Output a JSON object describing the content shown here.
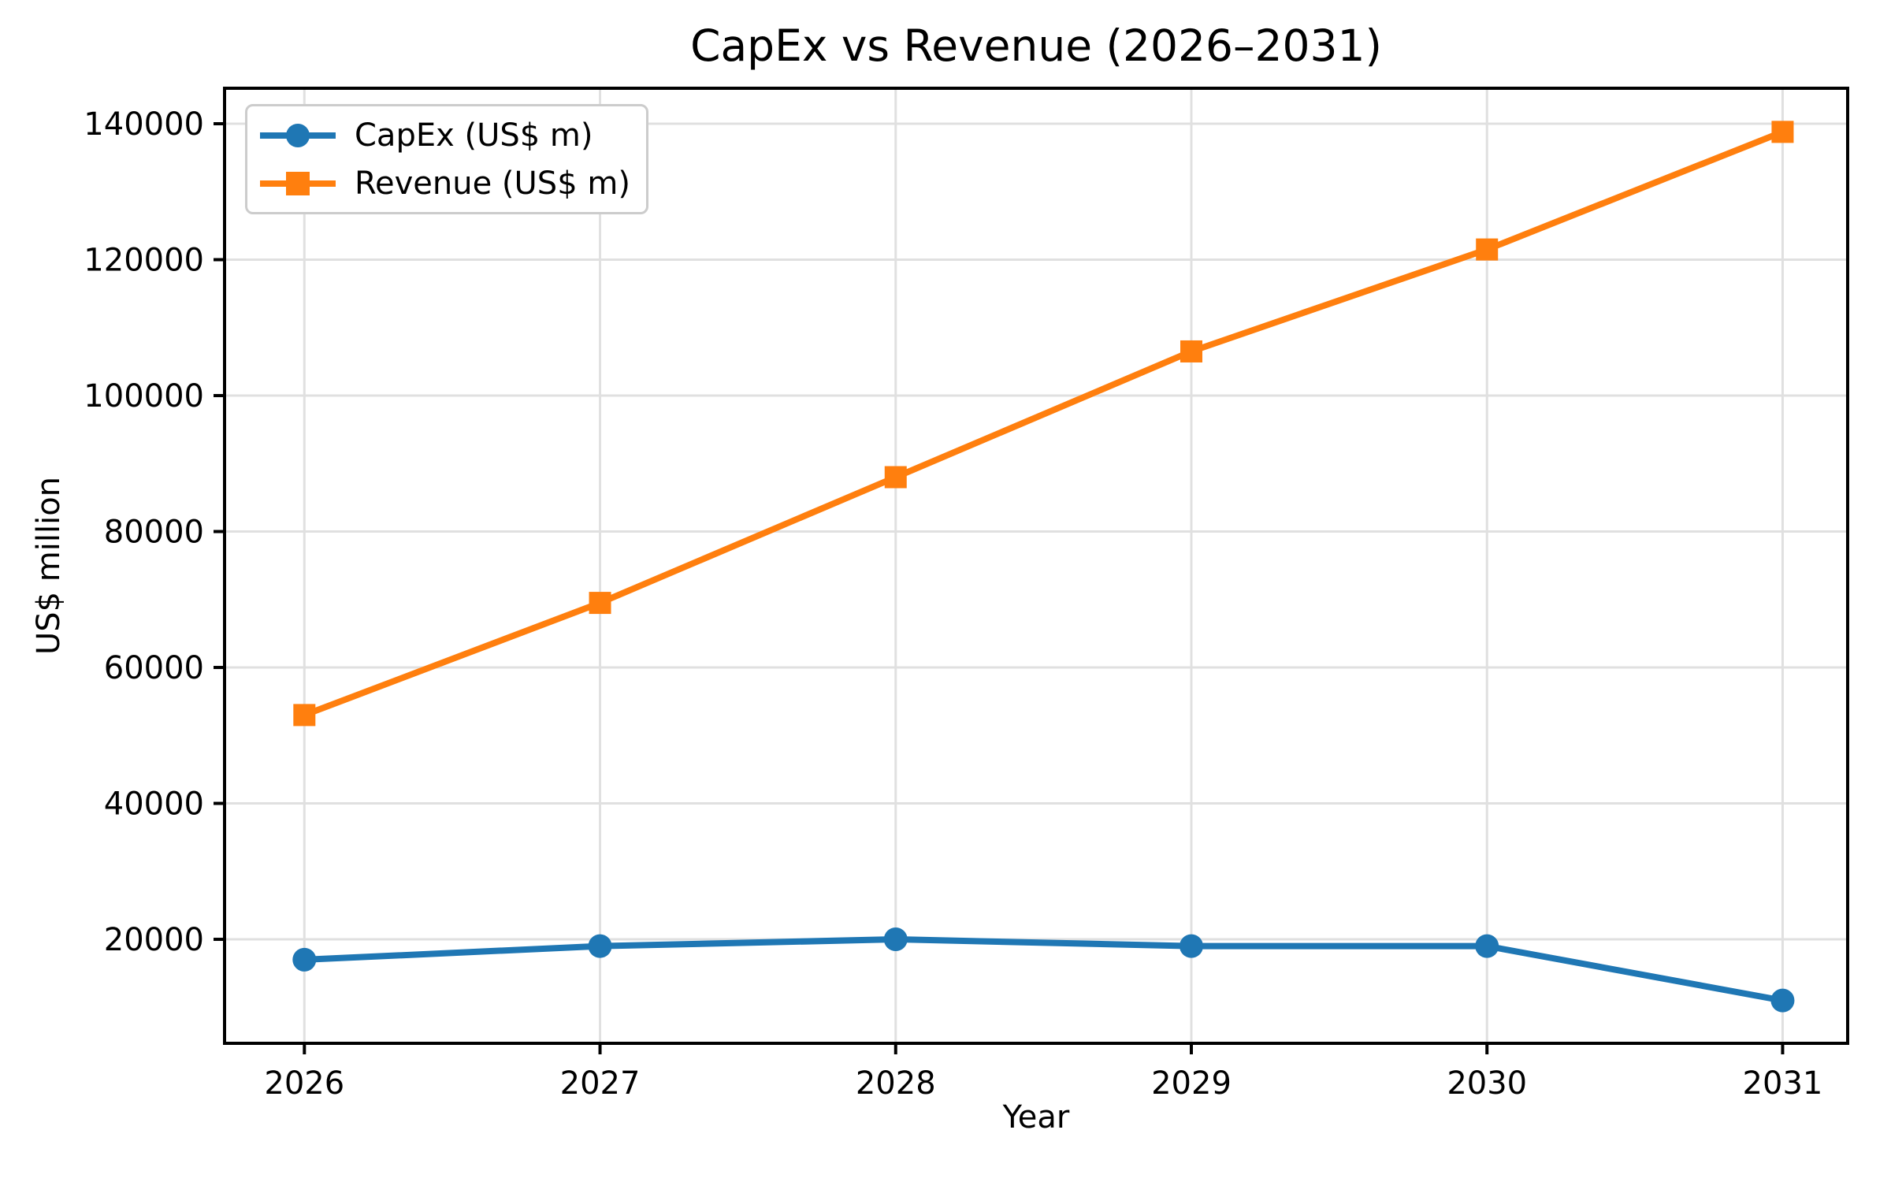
{
  "chart_data": {
    "type": "line",
    "title": "CapEx vs Revenue (2026–2031)",
    "xlabel": "Year",
    "ylabel": "US$ million",
    "categories": [
      2026,
      2027,
      2028,
      2029,
      2030,
      2031
    ],
    "x_tick_labels": [
      "2026",
      "2027",
      "2028",
      "2029",
      "2030",
      "2031"
    ],
    "y_ticks": [
      20000,
      40000,
      60000,
      80000,
      100000,
      120000,
      140000
    ],
    "y_tick_labels": [
      "20000",
      "40000",
      "60000",
      "80000",
      "100000",
      "120000",
      "140000"
    ],
    "series": [
      {
        "name": "CapEx (US$ m)",
        "marker": "circle",
        "color": "#1f77b4",
        "values": [
          17000,
          19000,
          20000,
          19000,
          19000,
          11000
        ]
      },
      {
        "name": "Revenue (US$ m)",
        "marker": "square",
        "color": "#ff7f0e",
        "values": [
          53000,
          69500,
          88000,
          106500,
          121500,
          138800
        ]
      }
    ],
    "xlim": [
      2025.73,
      2031.22
    ],
    "ylim": [
      4700,
      145220
    ],
    "grid": true,
    "grid_color": "#e0e0e0",
    "axis_color": "#000000",
    "background": "#ffffff",
    "legend_position": "upper left"
  }
}
